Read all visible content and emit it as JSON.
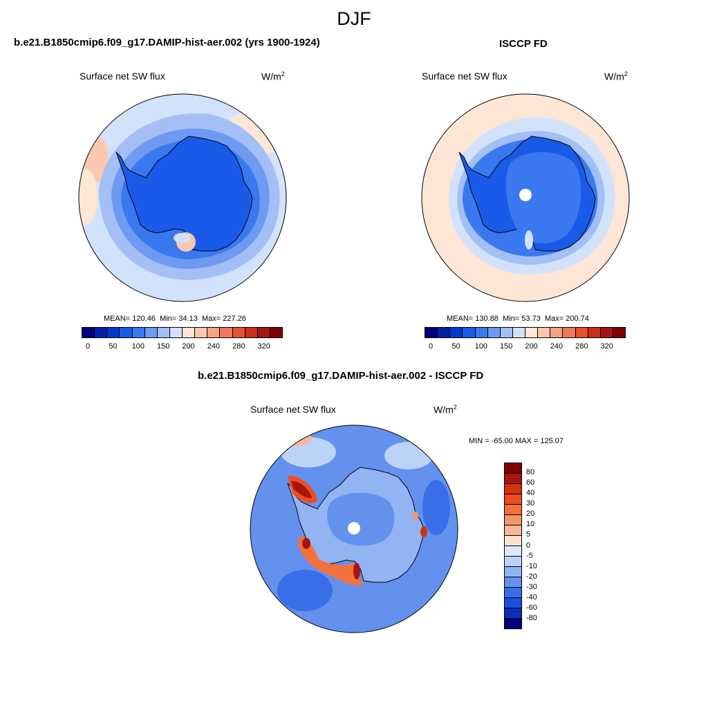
{
  "figure": {
    "season": "DJF"
  },
  "panels": {
    "model": {
      "title": "b.e21.B1850cmip6.f09_g17.DAMIP-hist-aer.002 (yrs 1900-1924)",
      "variable": "Surface net SW flux",
      "units": "W/m",
      "units_exp": "2",
      "mean_label": "MEAN=",
      "mean": "120.46",
      "min_label": "Min=",
      "min": "34.13",
      "max_label": "Max=",
      "max": "227.26"
    },
    "obs": {
      "title": "ISCCP FD",
      "variable": "Surface net SW flux",
      "units": "W/m",
      "units_exp": "2",
      "mean_label": "MEAN=",
      "mean": "130.88",
      "min_label": "Min=",
      "min": "53.73",
      "max_label": "Max=",
      "max": "200.74"
    },
    "diff": {
      "title": "b.e21.B1850cmip6.f09_g17.DAMIP-hist-aer.002 - ISCCP FD",
      "variable": "Surface net SW flux",
      "units": "W/m",
      "units_exp": "2",
      "minmax": "MIN = -65.00 MAX = 125.07"
    }
  },
  "colorbars": {
    "abs": {
      "colors": [
        "#00007f",
        "#0020a8",
        "#0038d0",
        "#1a5ae8",
        "#3a78f0",
        "#6e9af2",
        "#a3bff5",
        "#d2e2fa",
        "#fde6d6",
        "#fac8b0",
        "#f5a384",
        "#ee7a5a",
        "#e4522f",
        "#c9301a",
        "#a5160d",
        "#7f0000"
      ],
      "tick_labels": [
        "0",
        "50",
        "100",
        "150",
        "200",
        "240",
        "280",
        "320"
      ]
    },
    "diff": {
      "colors": [
        "#7f0000",
        "#a5160d",
        "#d3320f",
        "#ef4d1f",
        "#f4713e",
        "#f69668",
        "#f8b798",
        "#fde2cf",
        "#dde9fa",
        "#bcd3f8",
        "#92b4f3",
        "#6490ee",
        "#3a6de8",
        "#1c4fe0",
        "#0a2fb6",
        "#00007f"
      ],
      "tick_labels": [
        "80",
        "60",
        "40",
        "30",
        "20",
        "10",
        "5",
        "0",
        "-5",
        "-10",
        "-20",
        "-30",
        "-40",
        "-60",
        "-80"
      ]
    }
  }
}
